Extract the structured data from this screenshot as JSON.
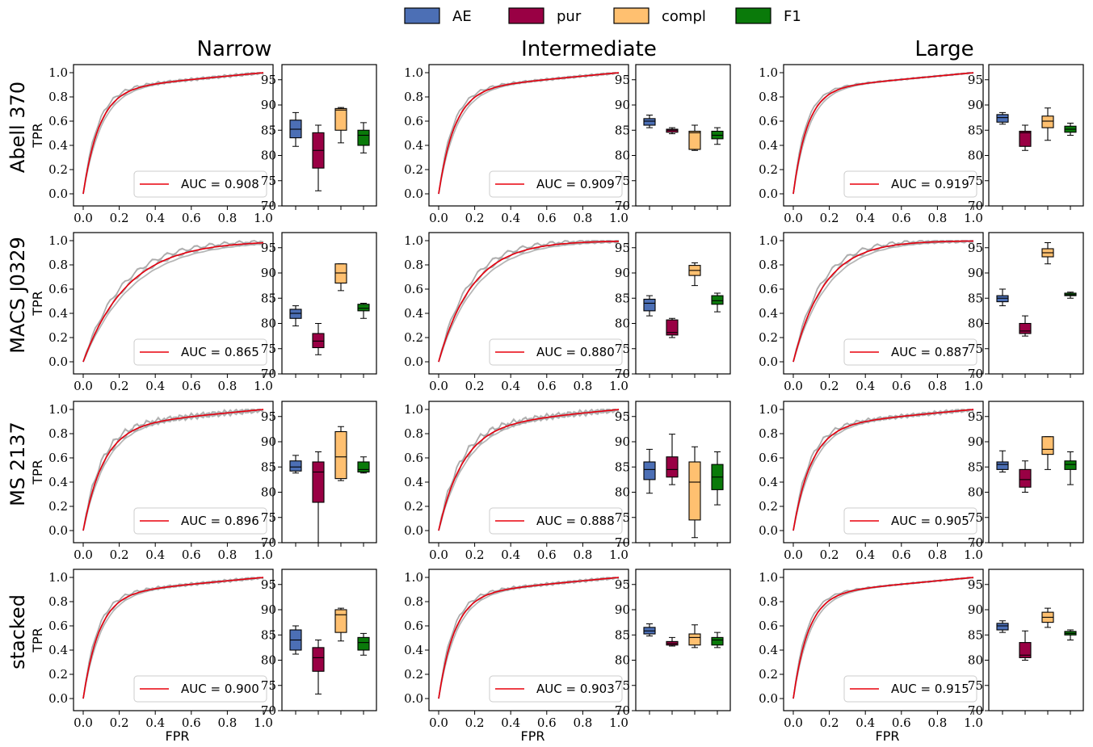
{
  "legend": {
    "items": [
      {
        "label": "AE",
        "color": "#4c6fb5"
      },
      {
        "label": "pur",
        "color": "#990044"
      },
      {
        "label": "compl",
        "color": "#ffc070"
      },
      {
        "label": "F1",
        "color": "#0a7a0a"
      }
    ]
  },
  "columns": [
    "Narrow",
    "Intermediate",
    "Large"
  ],
  "rows": [
    "Abell 370",
    "MACS J0329",
    "MS 2137",
    "stacked"
  ],
  "roc_axis": {
    "xlabel": "FPR",
    "ylabel": "TPR",
    "xlim": [
      0,
      1
    ],
    "ylim": [
      0,
      1
    ],
    "ticks": [
      "0.0",
      "0.2",
      "0.4",
      "0.6",
      "0.8",
      "1.0"
    ]
  },
  "box_axis": {
    "ylim": [
      70,
      98
    ],
    "ticks": [
      "70",
      "75",
      "80",
      "85",
      "90",
      "95"
    ]
  },
  "colors": {
    "roc_mean": "#e8000b",
    "roc_fold": "#a0a0a0",
    "roc_dash": "#3030ff"
  },
  "chart_data": [
    {
      "type": "line",
      "row": "Abell 370",
      "column": "Narrow",
      "auc_label": "AUC = 0.908",
      "auc": 0.908,
      "roc_shape": 0.16,
      "spread": 0.03,
      "boxplot": {
        "AE": {
          "min": 81.8,
          "q1": 83.5,
          "median": 85.2,
          "q3": 87.0,
          "max": 88.5
        },
        "pur": {
          "min": 73.0,
          "q1": 77.5,
          "median": 81.0,
          "q3": 84.5,
          "max": 86.0
        },
        "compl": {
          "min": 82.5,
          "q1": 85.0,
          "median": 89.0,
          "q3": 89.3,
          "max": 89.5
        },
        "F1": {
          "min": 80.5,
          "q1": 82.0,
          "median": 84.0,
          "q3": 85.0,
          "max": 86.5
        }
      }
    },
    {
      "type": "line",
      "row": "Abell 370",
      "column": "Intermediate",
      "auc_label": "AUC = 0.909",
      "auc": 0.909,
      "roc_shape": 0.16,
      "spread": 0.025,
      "boxplot": {
        "AE": {
          "min": 85.5,
          "q1": 86.0,
          "median": 86.8,
          "q3": 87.3,
          "max": 88.0
        },
        "pur": {
          "min": 84.3,
          "q1": 84.6,
          "median": 85.0,
          "q3": 85.2,
          "max": 85.5
        },
        "compl": {
          "min": 81.0,
          "q1": 81.2,
          "median": 84.5,
          "q3": 84.8,
          "max": 86.0
        },
        "F1": {
          "min": 82.2,
          "q1": 83.3,
          "median": 84.0,
          "q3": 84.8,
          "max": 85.5
        }
      }
    },
    {
      "type": "line",
      "row": "Abell 370",
      "column": "Large",
      "auc_label": "AUC = 0.919",
      "auc": 0.919,
      "roc_shape": 0.14,
      "spread": 0.015,
      "boxplot": {
        "AE": {
          "min": 86.2,
          "q1": 86.6,
          "median": 87.5,
          "q3": 88.1,
          "max": 88.5
        },
        "pur": {
          "min": 81.0,
          "q1": 81.8,
          "median": 84.5,
          "q3": 84.8,
          "max": 86.0
        },
        "compl": {
          "min": 83.0,
          "q1": 85.5,
          "median": 86.8,
          "q3": 87.8,
          "max": 89.4
        },
        "F1": {
          "min": 84.0,
          "q1": 84.6,
          "median": 85.2,
          "q3": 85.8,
          "max": 86.4
        }
      }
    },
    {
      "type": "line",
      "row": "MACS J0329",
      "column": "Narrow",
      "auc_label": "AUC = 0.865",
      "auc": 0.865,
      "roc_shape": 0.55,
      "spread": 0.04,
      "boxplot": {
        "AE": {
          "min": 79.5,
          "q1": 81.0,
          "median": 82.0,
          "q3": 82.8,
          "max": 83.5
        },
        "pur": {
          "min": 73.8,
          "q1": 75.2,
          "median": 76.5,
          "q3": 78.0,
          "max": 80.0
        },
        "compl": {
          "min": 86.5,
          "q1": 88.0,
          "median": 90.0,
          "q3": 91.8,
          "max": 91.8
        },
        "F1": {
          "min": 81.0,
          "q1": 82.5,
          "median": 83.0,
          "q3": 83.8,
          "max": 84.0
        }
      }
    },
    {
      "type": "line",
      "row": "MACS J0329",
      "column": "Intermediate",
      "auc_label": "AUC = 0.880",
      "auc": 0.88,
      "roc_shape": 0.42,
      "spread": 0.04,
      "boxplot": {
        "AE": {
          "min": 81.5,
          "q1": 82.5,
          "median": 84.0,
          "q3": 84.8,
          "max": 85.5
        },
        "pur": {
          "min": 77.2,
          "q1": 77.7,
          "median": 78.2,
          "q3": 80.7,
          "max": 81.0
        },
        "compl": {
          "min": 87.5,
          "q1": 89.5,
          "median": 90.5,
          "q3": 91.5,
          "max": 92.0
        },
        "F1": {
          "min": 82.3,
          "q1": 83.8,
          "median": 84.5,
          "q3": 85.5,
          "max": 86.0
        }
      }
    },
    {
      "type": "line",
      "row": "MACS J0329",
      "column": "Large",
      "auc_label": "AUC = 0.887",
      "auc": 0.887,
      "roc_shape": 0.38,
      "spread": 0.04,
      "boxplot": {
        "AE": {
          "min": 83.5,
          "q1": 84.3,
          "median": 85.0,
          "q3": 85.5,
          "max": 86.8
        },
        "pur": {
          "min": 77.5,
          "q1": 78.0,
          "median": 78.5,
          "q3": 80.0,
          "max": 81.5
        },
        "compl": {
          "min": 91.8,
          "q1": 93.2,
          "median": 94.0,
          "q3": 94.8,
          "max": 96.0
        },
        "F1": {
          "min": 85.0,
          "q1": 85.5,
          "median": 85.7,
          "q3": 86.0,
          "max": 86.2
        }
      }
    },
    {
      "type": "line",
      "row": "MS 2137",
      "column": "Narrow",
      "auc_label": "AUC = 0.896",
      "auc": 0.896,
      "roc_shape": 0.2,
      "spread": 0.06,
      "boxplot": {
        "AE": {
          "min": 83.8,
          "q1": 84.2,
          "median": 85.0,
          "q3": 86.2,
          "max": 87.3
        },
        "pur": {
          "min": 70.0,
          "q1": 78.0,
          "median": 84.0,
          "q3": 86.0,
          "max": 88.0
        },
        "compl": {
          "min": 82.3,
          "q1": 82.7,
          "median": 87.0,
          "q3": 92.0,
          "max": 93.0
        },
        "F1": {
          "min": 83.8,
          "q1": 84.0,
          "median": 84.5,
          "q3": 86.0,
          "max": 87.0
        }
      }
    },
    {
      "type": "line",
      "row": "MS 2137",
      "column": "Intermediate",
      "auc_label": "AUC = 0.888",
      "auc": 0.888,
      "roc_shape": 0.24,
      "spread": 0.06,
      "boxplot": {
        "AE": {
          "min": 79.8,
          "q1": 82.5,
          "median": 84.5,
          "q3": 86.0,
          "max": 88.5
        },
        "pur": {
          "min": 81.5,
          "q1": 83.0,
          "median": 84.5,
          "q3": 87.0,
          "max": 91.5
        },
        "compl": {
          "min": 71.0,
          "q1": 74.5,
          "median": 82.0,
          "q3": 86.0,
          "max": 89.0
        },
        "F1": {
          "min": 77.5,
          "q1": 80.5,
          "median": 83.0,
          "q3": 85.5,
          "max": 88.0
        }
      }
    },
    {
      "type": "line",
      "row": "MS 2137",
      "column": "Large",
      "auc_label": "AUC = 0.905",
      "auc": 0.905,
      "roc_shape": 0.18,
      "spread": 0.04,
      "boxplot": {
        "AE": {
          "min": 84.0,
          "q1": 84.5,
          "median": 85.5,
          "q3": 86.0,
          "max": 88.2
        },
        "pur": {
          "min": 80.0,
          "q1": 81.0,
          "median": 82.5,
          "q3": 84.5,
          "max": 86.2
        },
        "compl": {
          "min": 84.5,
          "q1": 87.5,
          "median": 88.5,
          "q3": 91.0,
          "max": 91.0
        },
        "F1": {
          "min": 81.5,
          "q1": 84.5,
          "median": 85.5,
          "q3": 86.2,
          "max": 88.0
        }
      }
    },
    {
      "type": "line",
      "row": "stacked",
      "column": "Narrow",
      "auc_label": "AUC = 0.900",
      "auc": 0.9,
      "roc_shape": 0.16,
      "spread": 0.03,
      "boxplot": {
        "AE": {
          "min": 81.2,
          "q1": 82.0,
          "median": 84.0,
          "q3": 86.0,
          "max": 86.8
        },
        "pur": {
          "min": 73.3,
          "q1": 77.8,
          "median": 80.5,
          "q3": 82.5,
          "max": 84.0
        },
        "compl": {
          "min": 83.8,
          "q1": 85.5,
          "median": 89.0,
          "q3": 90.0,
          "max": 90.3
        },
        "F1": {
          "min": 81.0,
          "q1": 82.0,
          "median": 83.5,
          "q3": 84.5,
          "max": 85.3
        }
      }
    },
    {
      "type": "line",
      "row": "stacked",
      "column": "Intermediate",
      "auc_label": "AUC = 0.903",
      "auc": 0.903,
      "roc_shape": 0.16,
      "spread": 0.03,
      "boxplot": {
        "AE": {
          "min": 84.8,
          "q1": 85.2,
          "median": 85.8,
          "q3": 86.5,
          "max": 87.2
        },
        "pur": {
          "min": 82.8,
          "q1": 83.0,
          "median": 83.3,
          "q3": 83.7,
          "max": 84.5
        },
        "compl": {
          "min": 82.5,
          "q1": 83.0,
          "median": 84.5,
          "q3": 85.2,
          "max": 87.0
        },
        "F1": {
          "min": 82.5,
          "q1": 83.0,
          "median": 84.0,
          "q3": 84.5,
          "max": 85.5
        }
      }
    },
    {
      "type": "line",
      "row": "stacked",
      "column": "Large",
      "auc_label": "AUC = 0.915",
      "auc": 0.915,
      "roc_shape": 0.15,
      "spread": 0.015,
      "boxplot": {
        "AE": {
          "min": 85.5,
          "q1": 86.0,
          "median": 86.8,
          "q3": 87.3,
          "max": 87.8
        },
        "pur": {
          "min": 80.0,
          "q1": 80.5,
          "median": 81.0,
          "q3": 83.5,
          "max": 85.8
        },
        "compl": {
          "min": 86.5,
          "q1": 87.5,
          "median": 88.5,
          "q3": 89.5,
          "max": 90.3
        },
        "F1": {
          "min": 84.0,
          "q1": 85.0,
          "median": 85.3,
          "q3": 85.7,
          "max": 86.0
        }
      }
    }
  ]
}
